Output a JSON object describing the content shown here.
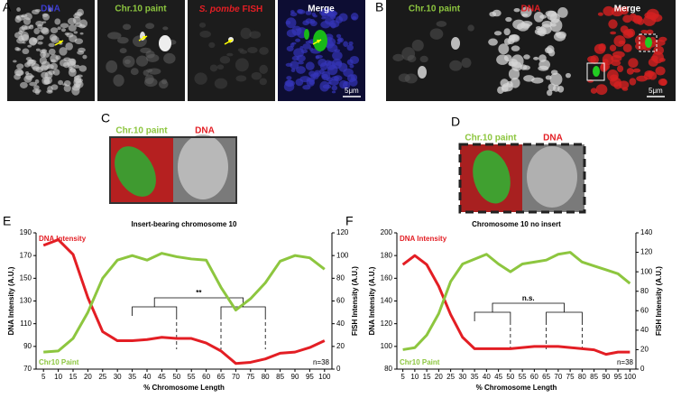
{
  "figure": {
    "panels": [
      {
        "letter": "A",
        "labels": [
          "DNA",
          "Chr.10 paint",
          "S. pombe",
          "FISH",
          "Merge"
        ],
        "scale": "5μm"
      },
      {
        "letter": "B",
        "labels": [
          "Chr.10 paint",
          "DNA",
          "Merge"
        ],
        "scale": "5μm"
      },
      {
        "letter": "C",
        "labels": [
          "Chr.10 paint",
          "DNA"
        ]
      },
      {
        "letter": "D",
        "labels": [
          "Chr.10 paint",
          "DNA"
        ]
      },
      {
        "letter": "E"
      },
      {
        "letter": "F"
      }
    ]
  },
  "chart_data": [
    {
      "type": "line",
      "title": "Insert-bearing chromosome 10",
      "x_label": "% Chromosome Length",
      "y_label": "DNA Intensity (A.U.)",
      "y2_label": "FISH Intensity (A.U.)",
      "x": [
        5,
        10,
        15,
        20,
        25,
        30,
        35,
        40,
        45,
        50,
        55,
        60,
        65,
        70,
        75,
        80,
        85,
        90,
        95,
        100
      ],
      "ylim": [
        70,
        190
      ],
      "yticks": [
        70,
        90,
        110,
        130,
        150,
        170,
        190
      ],
      "y2lim": [
        0,
        120
      ],
      "y2ticks": [
        0,
        20,
        40,
        60,
        80,
        100,
        120
      ],
      "series": [
        {
          "name": "DNA Intensity",
          "color": "#e31e24",
          "values": [
            179,
            184,
            171,
            133,
            103,
            95,
            95,
            96,
            98,
            97,
            97,
            93,
            86,
            75,
            76,
            79,
            84,
            85,
            89,
            95
          ]
        },
        {
          "name": "Chr10 Paint",
          "color": "#8dc63f",
          "axis": "y2",
          "values": [
            15,
            16,
            27,
            50,
            80,
            96,
            100,
            96,
            102,
            99,
            97,
            96,
            72,
            52,
            62,
            76,
            95,
            100,
            98,
            88
          ]
        }
      ],
      "annotations": [
        "**",
        "n=38"
      ]
    },
    {
      "type": "line",
      "title": "Chromosome 10 no insert",
      "x_label": "% Chromosome Length",
      "y_label": "DNA Intensity (A.U.)",
      "y2_label": "FISH Intensity (A.U.)",
      "x": [
        5,
        10,
        15,
        20,
        25,
        30,
        35,
        40,
        45,
        50,
        55,
        60,
        65,
        70,
        75,
        80,
        85,
        90,
        95,
        100
      ],
      "ylim": [
        80,
        200
      ],
      "yticks": [
        80,
        100,
        120,
        140,
        160,
        180,
        200
      ],
      "y2lim": [
        0,
        140
      ],
      "y2ticks": [
        0,
        20,
        40,
        60,
        80,
        100,
        120,
        140
      ],
      "series": [
        {
          "name": "DNA Intensity",
          "color": "#e31e24",
          "values": [
            172,
            180,
            172,
            153,
            128,
            108,
            98,
            98,
            98,
            98,
            99,
            100,
            100,
            100,
            99,
            98,
            97,
            93,
            95,
            95
          ]
        },
        {
          "name": "Chr10 Paint",
          "color": "#8dc63f",
          "axis": "y2",
          "values": [
            20,
            22,
            35,
            57,
            90,
            108,
            113,
            118,
            108,
            100,
            108,
            110,
            112,
            118,
            120,
            110,
            106,
            102,
            98,
            88
          ]
        }
      ],
      "annotations": [
        "n.s.",
        "n=38"
      ]
    }
  ]
}
